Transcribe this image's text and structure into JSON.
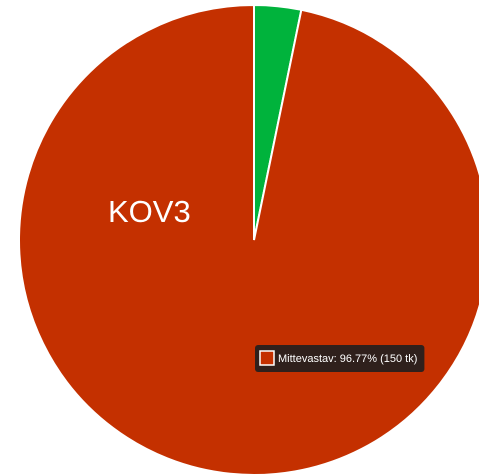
{
  "chart_data": {
    "type": "pie",
    "annotation": "KOV3",
    "values": [
      3.23,
      96.77
    ],
    "value_labels": [
      null,
      "Mittevastav: 96.77% (150 tk)"
    ],
    "colors": [
      "#00b33c",
      "#c43000"
    ]
  }
}
